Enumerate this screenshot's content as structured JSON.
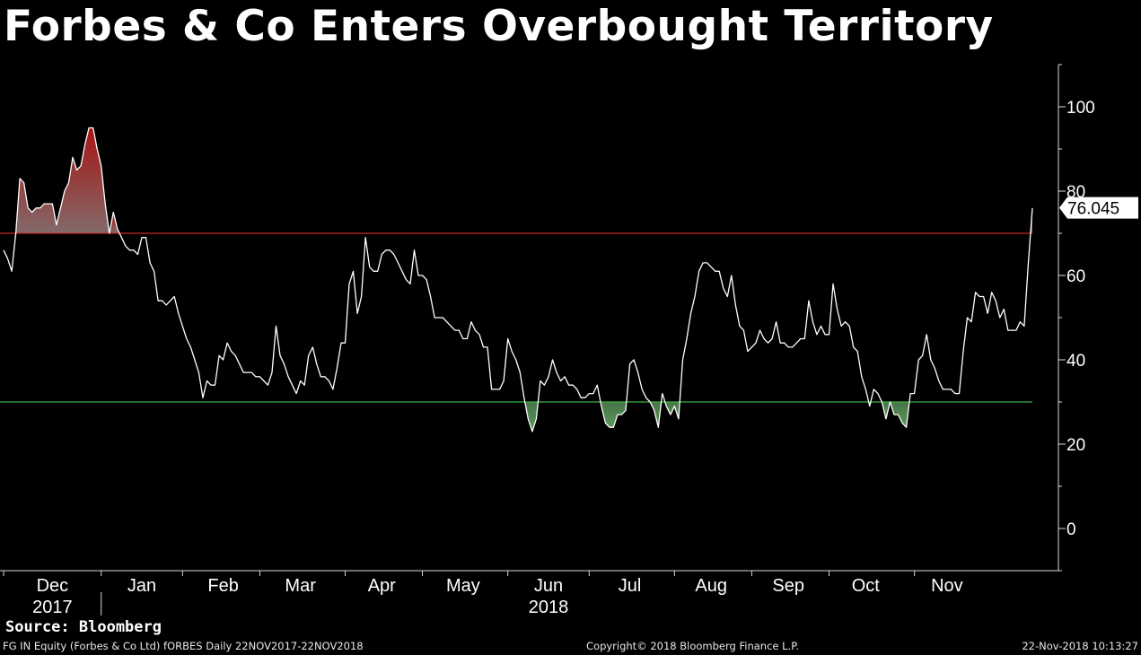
{
  "title": "Forbes & Co Enters Overbought Territory",
  "source": "Source: Bloomberg",
  "footer": {
    "left": "FG IN Equity (Forbes & Co Ltd) fORBES  Daily 22NOV2017-22NOV2018",
    "center": "Copyright© 2018 Bloomberg Finance L.P.",
    "right": "22-Nov-2018 10:13:27"
  },
  "colors": {
    "background": "#000000",
    "line": "#ffffff",
    "overbought": "#c0282a",
    "oversold": "#3cb043",
    "overbought_fill": "#a23a3a",
    "oversold_fill": "#4e8b4e"
  },
  "chart_data": {
    "type": "line",
    "indicator": "RSI",
    "ylim": [
      -10,
      110
    ],
    "yticks": [
      0,
      20,
      40,
      60,
      80,
      100
    ],
    "ytick_labels": [
      "0",
      "20",
      "40",
      "60",
      "80",
      "100"
    ],
    "overbought_level": 70,
    "oversold_level": 30,
    "last_value": 76.045,
    "last_value_label": "76.045",
    "month_labels": [
      "Dec",
      "Jan",
      "Feb",
      "Mar",
      "Apr",
      "May",
      "Jun",
      "Jul",
      "Aug",
      "Sep",
      "Oct",
      "Nov"
    ],
    "year_labels": [
      "2017",
      "2018"
    ],
    "month_starts": [
      0,
      24,
      44,
      63,
      84,
      103,
      124,
      144,
      165,
      184,
      203,
      224
    ],
    "month_label_pos": [
      12,
      34,
      54,
      73,
      93,
      113,
      134,
      154,
      174,
      193,
      212,
      232
    ],
    "year_label_pos": [
      12,
      134
    ],
    "year_separator": 24,
    "values": [
      66,
      64,
      61,
      70,
      83,
      82,
      76,
      75,
      76,
      76,
      77,
      77,
      77,
      72,
      76,
      80,
      82,
      88,
      85,
      86,
      91,
      95,
      95,
      90,
      86,
      77,
      70,
      75,
      71,
      69,
      67,
      66,
      66,
      65,
      69,
      69,
      63,
      61,
      54,
      54,
      53,
      54,
      55,
      51,
      48,
      45,
      43,
      40,
      37,
      31,
      35,
      34,
      34,
      41,
      40,
      44,
      42,
      41,
      39,
      37,
      37,
      37,
      36,
      36,
      35,
      34,
      37,
      48,
      41,
      39,
      36,
      34,
      32,
      35,
      34,
      41,
      43,
      39,
      36,
      36,
      35,
      33,
      38,
      44,
      44,
      58,
      61,
      51,
      55,
      69,
      62,
      61,
      61,
      65,
      66,
      66,
      65,
      63,
      61,
      59,
      58,
      66,
      60,
      60,
      59,
      55,
      50,
      50,
      50,
      49,
      48,
      47,
      47,
      45,
      45,
      49,
      47,
      46,
      43,
      43,
      33,
      33,
      33,
      35,
      45,
      42,
      40,
      37,
      31,
      26,
      23,
      26,
      35,
      34,
      36,
      40,
      37,
      35,
      36,
      34,
      34,
      33,
      31,
      31,
      32,
      32,
      34,
      29,
      25,
      24,
      24,
      27,
      27,
      28,
      39,
      40,
      37,
      33,
      31,
      30,
      28,
      24,
      32,
      29,
      27,
      29,
      26,
      40,
      45,
      51,
      55,
      61,
      63,
      63,
      62,
      61,
      61,
      57,
      55,
      60,
      53,
      48,
      47,
      42,
      43,
      44,
      47,
      45,
      44,
      45,
      49,
      44,
      44,
      43,
      43,
      44,
      45,
      45,
      54,
      49,
      46,
      48,
      46,
      46,
      58,
      52,
      48,
      49,
      48,
      43,
      42,
      36,
      33,
      29,
      33,
      32,
      30,
      26,
      30,
      27,
      27,
      25,
      24,
      32,
      32,
      40,
      41,
      46,
      40,
      38,
      35,
      33,
      33,
      33,
      32,
      32,
      42,
      50,
      49,
      56,
      55,
      55,
      51,
      56,
      54,
      50,
      52,
      47,
      47,
      47,
      49,
      48,
      63,
      76
    ]
  }
}
